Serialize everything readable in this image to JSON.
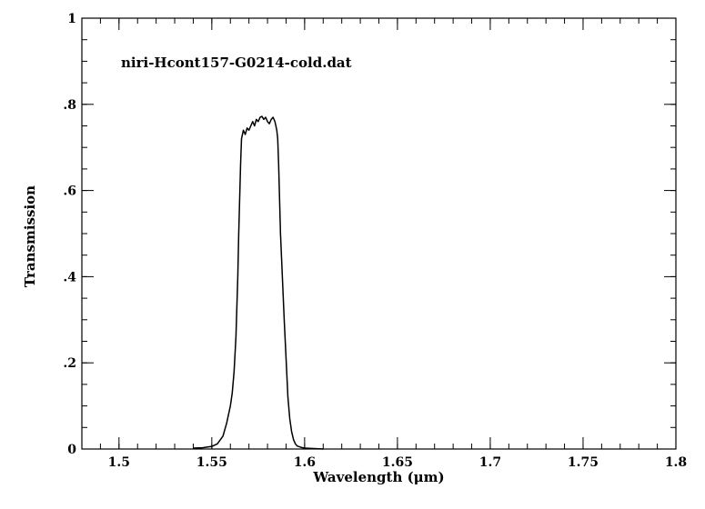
{
  "chart_data": {
    "type": "line",
    "title": "niri-Hcont157-G0214-cold.dat",
    "xlabel": "Wavelength (μm)",
    "ylabel": "Transmission",
    "xlim": [
      1.48,
      1.8
    ],
    "ylim": [
      0,
      1
    ],
    "xticks": [
      {
        "value": 1.5,
        "label": "1.5"
      },
      {
        "value": 1.55,
        "label": "1.55"
      },
      {
        "value": 1.6,
        "label": "1.6"
      },
      {
        "value": 1.65,
        "label": "1.65"
      },
      {
        "value": 1.7,
        "label": "1.7"
      },
      {
        "value": 1.75,
        "label": "1.75"
      },
      {
        "value": 1.8,
        "label": "1.8"
      }
    ],
    "yticks": [
      {
        "value": 0,
        "label": "0"
      },
      {
        "value": 0.2,
        "label": ".2"
      },
      {
        "value": 0.4,
        "label": ".4"
      },
      {
        "value": 0.6,
        "label": ".6"
      },
      {
        "value": 0.8,
        "label": ".8"
      },
      {
        "value": 1,
        "label": "1"
      }
    ],
    "x_minor_step": 0.01,
    "y_minor_step": 0.05,
    "grid": false,
    "series": [
      {
        "x": [
          1.54,
          1.545,
          1.55,
          1.553,
          1.556,
          1.558,
          1.56,
          1.561,
          1.562,
          1.563,
          1.564,
          1.5645,
          1.565,
          1.5655,
          1.566,
          1.567,
          1.568,
          1.569,
          1.57,
          1.571,
          1.572,
          1.573,
          1.574,
          1.575,
          1.576,
          1.577,
          1.578,
          1.579,
          1.58,
          1.581,
          1.582,
          1.583,
          1.584,
          1.585,
          1.5855,
          1.586,
          1.587,
          1.588,
          1.589,
          1.59,
          1.591,
          1.592,
          1.593,
          1.594,
          1.595,
          1.596,
          1.598,
          1.6,
          1.605,
          1.61
        ],
        "y": [
          0.002,
          0.003,
          0.006,
          0.012,
          0.03,
          0.06,
          0.1,
          0.13,
          0.18,
          0.26,
          0.4,
          0.5,
          0.58,
          0.66,
          0.72,
          0.74,
          0.73,
          0.745,
          0.74,
          0.75,
          0.76,
          0.75,
          0.765,
          0.76,
          0.77,
          0.772,
          0.765,
          0.77,
          0.76,
          0.755,
          0.765,
          0.77,
          0.76,
          0.74,
          0.72,
          0.66,
          0.5,
          0.4,
          0.3,
          0.21,
          0.12,
          0.07,
          0.04,
          0.022,
          0.012,
          0.007,
          0.004,
          0.002,
          0.001,
          0.0
        ]
      }
    ]
  }
}
